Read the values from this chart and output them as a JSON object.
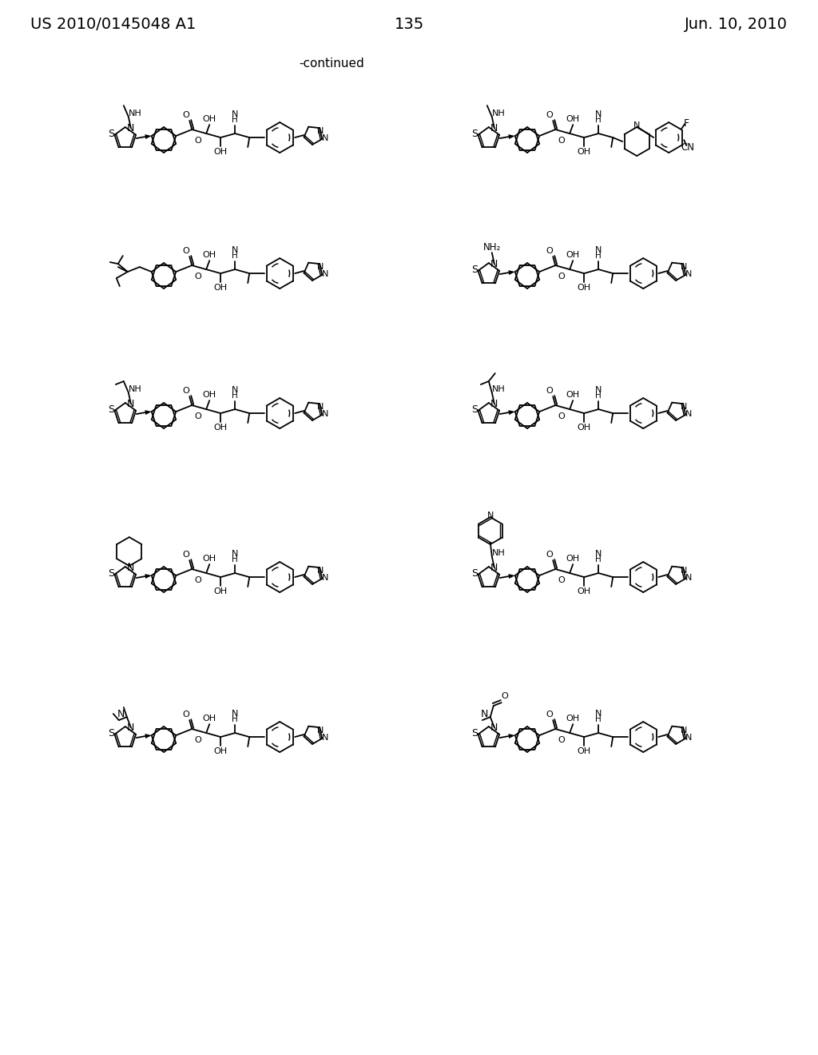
{
  "header_left": "US 2010/0145048 A1",
  "header_right": "Jun. 10, 2010",
  "page_number": "135",
  "continued_label": "-continued",
  "bg_color": "#ffffff",
  "text_color": "#000000"
}
